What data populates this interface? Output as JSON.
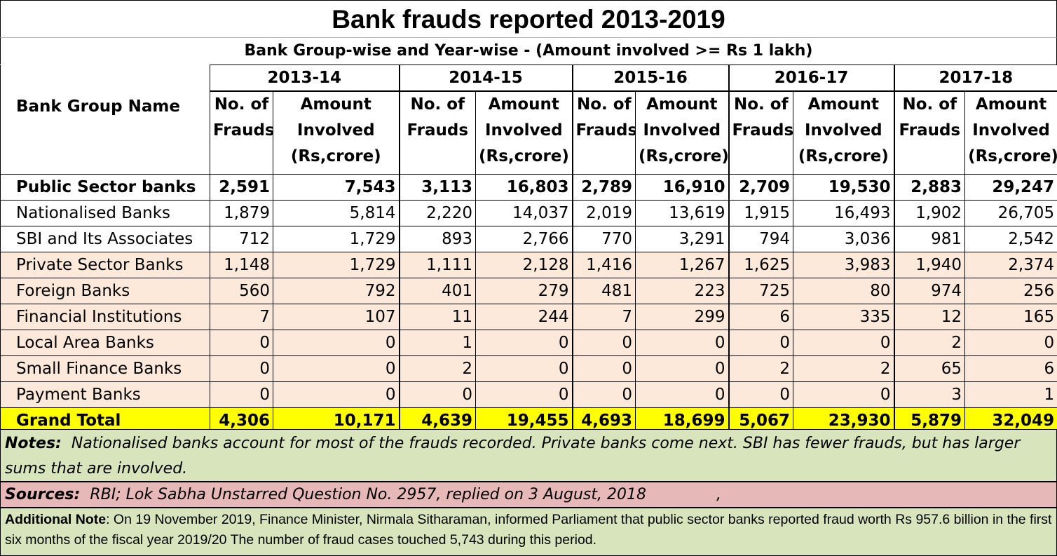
{
  "title": "Bank frauds reported 2013-2019",
  "subtitle": "Bank Group-wise and Year-wise - (Amount involved >= Rs 1 lakh)",
  "header": {
    "name_col": "Bank Group Name",
    "years": [
      "2013-14",
      "2014-15",
      "2015-16",
      "2016-17",
      "2017-18"
    ],
    "frauds_label": [
      "No. of",
      "Frauds"
    ],
    "amount_label": [
      "Amount",
      "Involved",
      "(Rs,crore)"
    ]
  },
  "rows": [
    {
      "name": "Public Sector banks",
      "values": [
        "2,591",
        "7,543",
        "3,113",
        "16,803",
        "2,789",
        "16,910",
        "2,709",
        "19,530",
        "2,883",
        "29,247"
      ]
    },
    {
      "name": "Nationalised Banks",
      "values": [
        "1,879",
        "5,814",
        "2,220",
        "14,037",
        "2,019",
        "13,619",
        "1,915",
        "16,493",
        "1,902",
        "26,705"
      ]
    },
    {
      "name": "SBI and Its Associates",
      "values": [
        "712",
        "1,729",
        "893",
        "2,766",
        "770",
        "3,291",
        "794",
        "3,036",
        "981",
        "2,542"
      ]
    },
    {
      "name": "Private Sector Banks",
      "values": [
        "1,148",
        "1,729",
        "1,111",
        "2,128",
        "1,416",
        "1,267",
        "1,625",
        "3,983",
        "1,940",
        "2,374"
      ]
    },
    {
      "name": "Foreign Banks",
      "values": [
        "560",
        "792",
        "401",
        "279",
        "481",
        "223",
        "725",
        "80",
        "974",
        "256"
      ]
    },
    {
      "name": "Financial Institutions",
      "values": [
        "7",
        "107",
        "11",
        "244",
        "7",
        "299",
        "6",
        "335",
        "12",
        "165"
      ]
    },
    {
      "name": "Local Area Banks",
      "values": [
        "0",
        "0",
        "1",
        "0",
        "0",
        "0",
        "0",
        "0",
        "2",
        "0"
      ]
    },
    {
      "name": "Small Finance Banks",
      "values": [
        "0",
        "0",
        "2",
        "0",
        "0",
        "0",
        "2",
        "2",
        "65",
        "6"
      ]
    },
    {
      "name": "Payment Banks",
      "values": [
        "0",
        "0",
        "0",
        "0",
        "0",
        "0",
        "0",
        "0",
        "3",
        "1"
      ]
    },
    {
      "name": "Grand Total",
      "values": [
        "4,306",
        "10,171",
        "4,639",
        "19,455",
        "4,693",
        "18,699",
        "5,067",
        "23,930",
        "5,879",
        "32,049"
      ]
    }
  ],
  "notes": {
    "label": "Notes:",
    "text": "Nationalised banks account for most of the frauds recorded.  Private banks come next.  SBI has fewer frauds, but has larger sums that are involved."
  },
  "sources": {
    "label": "Sources:",
    "text": "RBI; Lok Sabha Unstarred Question No. 2957, replied on 3 August, 2018",
    "trailing": ","
  },
  "additional_note": {
    "label": "Additional Note",
    "text": ":  On 19 November 2019, Finance Minister, Nirmala Sitharaman, informed Parliament that public sector banks reported fraud worth Rs 957.6 billion in the first six months of the fiscal year 2019/20 The number of fraud cases touched 5,743 during this period."
  },
  "colors": {
    "peach_rows": "#fde9d9",
    "grand_total": "#ffff00",
    "notes_bg": "#d8e4bc",
    "sources_bg": "#e6b8b7"
  }
}
